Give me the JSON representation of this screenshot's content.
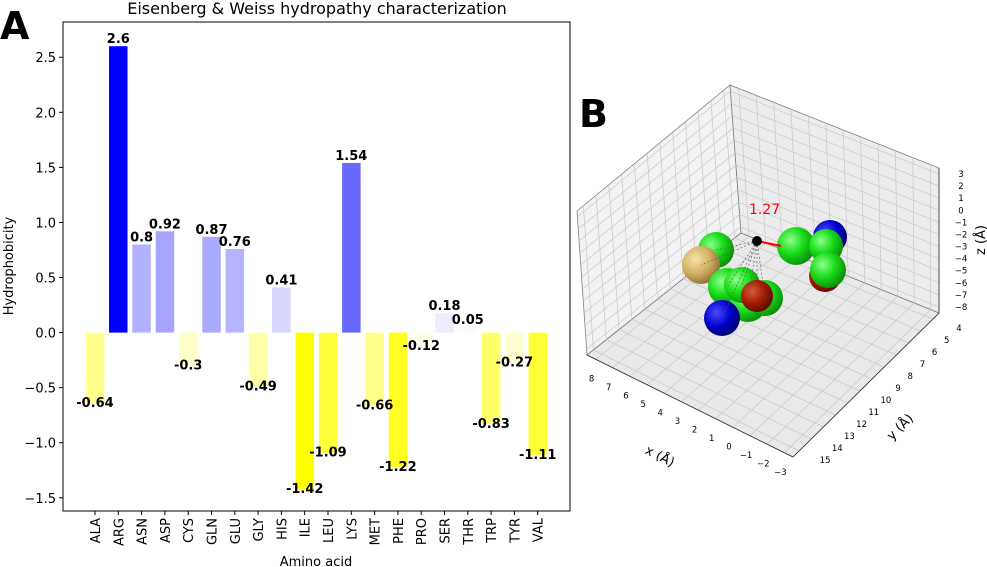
{
  "panels": {
    "a_letter": "A",
    "b_letter": "B"
  },
  "chart_data": [
    {
      "type": "bar",
      "title": "Eisenberg & Weiss hydropathy characterization",
      "xlabel": "Amino acid",
      "ylabel": "Hydrophobicity",
      "ylim": [
        -1.62,
        2.82
      ],
      "yticks": [
        "−1.5",
        "−1.0",
        "−0.5",
        "0.0",
        "0.5",
        "1.0",
        "1.5",
        "2.0",
        "2.5"
      ],
      "ytick_values": [
        -1.5,
        -1.0,
        -0.5,
        0.0,
        0.5,
        1.0,
        1.5,
        2.0,
        2.5
      ],
      "categories": [
        "ALA",
        "ARG",
        "ASN",
        "ASP",
        "CYS",
        "GLN",
        "GLU",
        "GLY",
        "HIS",
        "ILE",
        "LEU",
        "LYS",
        "MET",
        "PHE",
        "PRO",
        "SER",
        "THR",
        "TRP",
        "TYR",
        "VAL"
      ],
      "values": [
        -0.64,
        2.6,
        0.8,
        0.92,
        -0.3,
        0.87,
        0.76,
        -0.49,
        0.41,
        -1.42,
        -1.09,
        1.54,
        -0.66,
        -1.22,
        -0.12,
        0.18,
        0.05,
        -0.83,
        -0.27,
        -1.11
      ],
      "value_labels": [
        "-0.64",
        "2.6",
        "0.8",
        "0.92",
        "-0.3",
        "0.87",
        "0.76",
        "-0.49",
        "0.41",
        "-1.42",
        "-1.09",
        "1.54",
        "-0.66",
        "-1.22",
        "-0.12",
        "0.18",
        "0.05",
        "-0.83",
        "-0.27",
        "-1.11"
      ],
      "colors": {
        "positive": "#0000ff",
        "negative": "#ffff00"
      },
      "grid": false
    },
    {
      "type": "scatter3d",
      "xlabel": "x (Å)",
      "ylabel": "y (Å)",
      "zlabel": "z (Å)",
      "xticks": [
        "8",
        "7",
        "6",
        "5",
        "4",
        "3",
        "2",
        "1",
        "0",
        "−1",
        "−2",
        "−3"
      ],
      "yticks": [
        "4",
        "5",
        "6",
        "7",
        "8",
        "9",
        "10",
        "11",
        "12",
        "13",
        "14",
        "15"
      ],
      "zticks": [
        "3",
        "2",
        "1",
        "0",
        "−1",
        "−2",
        "−3",
        "−4",
        "−5",
        "−6",
        "−7",
        "−8"
      ],
      "annotation": "1.27",
      "annotation_color": "#ff0000",
      "atom_colors": {
        "green": "#22dd22",
        "blue": "#0000cc",
        "red": "#aa1a00",
        "tan": "#d8b96a",
        "black": "#000000"
      },
      "grid": true
    }
  ]
}
